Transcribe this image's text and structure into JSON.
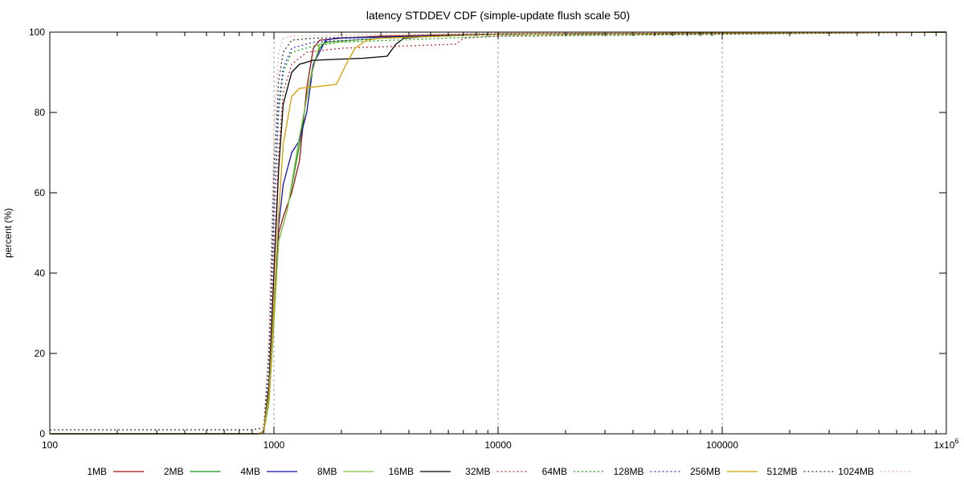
{
  "chart_data": {
    "type": "line",
    "title": "latency STDDEV CDF (simple-update flush scale 50)",
    "ylabel": "percent (%)",
    "xlabel": "",
    "x_scale": "log",
    "xlim": [
      100,
      1000000
    ],
    "ylim": [
      0,
      100
    ],
    "x_ticks": [
      {
        "value": 100,
        "label": "100"
      },
      {
        "value": 1000,
        "label": "1000"
      },
      {
        "value": 10000,
        "label": "10000"
      },
      {
        "value": 100000,
        "label": "100000"
      },
      {
        "value": 1000000,
        "label": "1x10",
        "sup": "6"
      }
    ],
    "y_ticks": [
      0,
      20,
      40,
      60,
      80,
      100
    ],
    "grid": "x-major-dashed",
    "legend_position": "bottom",
    "series": [
      {
        "name": "1MB",
        "color": "#a01010",
        "dash": "solid",
        "points": [
          [
            100,
            0
          ],
          [
            850,
            0
          ],
          [
            900,
            0.5
          ],
          [
            950,
            8
          ],
          [
            1000,
            28
          ],
          [
            1050,
            50
          ],
          [
            1100,
            54
          ],
          [
            1200,
            60
          ],
          [
            1300,
            68
          ],
          [
            1400,
            86
          ],
          [
            1500,
            96
          ],
          [
            1600,
            98
          ],
          [
            2000,
            98.5
          ],
          [
            3000,
            99
          ],
          [
            10000,
            99.5
          ],
          [
            1000000,
            100
          ]
        ]
      },
      {
        "name": "2MB",
        "color": "#109010",
        "dash": "solid",
        "points": [
          [
            100,
            0
          ],
          [
            850,
            0
          ],
          [
            900,
            0.5
          ],
          [
            950,
            8
          ],
          [
            1000,
            30
          ],
          [
            1050,
            48
          ],
          [
            1150,
            56
          ],
          [
            1300,
            72
          ],
          [
            1400,
            84
          ],
          [
            1500,
            92
          ],
          [
            1600,
            96
          ],
          [
            1700,
            97.5
          ],
          [
            3000,
            98.5
          ],
          [
            10000,
            99.5
          ],
          [
            1000000,
            100
          ]
        ]
      },
      {
        "name": "4MB",
        "color": "#1010b0",
        "dash": "solid",
        "points": [
          [
            100,
            0
          ],
          [
            850,
            0
          ],
          [
            900,
            0.5
          ],
          [
            950,
            10
          ],
          [
            1000,
            32
          ],
          [
            1050,
            52
          ],
          [
            1100,
            62
          ],
          [
            1200,
            70
          ],
          [
            1300,
            73
          ],
          [
            1400,
            80
          ],
          [
            1500,
            92
          ],
          [
            1700,
            98
          ],
          [
            1900,
            98.5
          ],
          [
            10000,
            99.5
          ],
          [
            1000000,
            100
          ]
        ]
      },
      {
        "name": "8MB",
        "color": "#80c040",
        "dash": "solid",
        "points": [
          [
            100,
            0
          ],
          [
            850,
            0
          ],
          [
            900,
            0.5
          ],
          [
            950,
            8
          ],
          [
            1000,
            28
          ],
          [
            1050,
            48
          ],
          [
            1150,
            56
          ],
          [
            1300,
            74
          ],
          [
            1450,
            88
          ],
          [
            1600,
            97
          ],
          [
            1800,
            97.5
          ],
          [
            3000,
            98.5
          ],
          [
            10000,
            99.5
          ],
          [
            1000000,
            100
          ]
        ]
      },
      {
        "name": "16MB",
        "color": "#000000",
        "dash": "solid",
        "points": [
          [
            100,
            0
          ],
          [
            850,
            0
          ],
          [
            900,
            0.5
          ],
          [
            950,
            12
          ],
          [
            1000,
            40
          ],
          [
            1050,
            66
          ],
          [
            1100,
            82
          ],
          [
            1200,
            90
          ],
          [
            1300,
            92
          ],
          [
            1500,
            93
          ],
          [
            2500,
            93.5
          ],
          [
            3200,
            94
          ],
          [
            3500,
            97
          ],
          [
            3800,
            98.5
          ],
          [
            5000,
            99
          ],
          [
            10000,
            99.5
          ],
          [
            1000000,
            100
          ]
        ]
      },
      {
        "name": "32MB",
        "color": "#c03030",
        "dash": "dotted",
        "points": [
          [
            100,
            0
          ],
          [
            850,
            0
          ],
          [
            900,
            0.5
          ],
          [
            950,
            12
          ],
          [
            1000,
            45
          ],
          [
            1050,
            70
          ],
          [
            1100,
            85
          ],
          [
            1200,
            92
          ],
          [
            1400,
            95
          ],
          [
            2000,
            96
          ],
          [
            6500,
            97
          ],
          [
            7000,
            98.5
          ],
          [
            10000,
            99
          ],
          [
            1000000,
            100
          ]
        ]
      },
      {
        "name": "64MB",
        "color": "#10a010",
        "dash": "dotted",
        "points": [
          [
            100,
            0
          ],
          [
            850,
            0
          ],
          [
            900,
            0.5
          ],
          [
            950,
            15
          ],
          [
            1000,
            55
          ],
          [
            1050,
            80
          ],
          [
            1100,
            90
          ],
          [
            1200,
            95
          ],
          [
            1500,
            96.5
          ],
          [
            2000,
            97.5
          ],
          [
            10000,
            99
          ],
          [
            1000000,
            100
          ]
        ]
      },
      {
        "name": "128MB",
        "color": "#3030c0",
        "dash": "dotted",
        "points": [
          [
            100,
            0
          ],
          [
            850,
            0
          ],
          [
            900,
            0.5
          ],
          [
            950,
            15
          ],
          [
            1000,
            55
          ],
          [
            1050,
            82
          ],
          [
            1100,
            91
          ],
          [
            1200,
            96
          ],
          [
            1500,
            97.5
          ],
          [
            3000,
            98.5
          ],
          [
            10000,
            99.5
          ],
          [
            1000000,
            100
          ]
        ]
      },
      {
        "name": "256MB",
        "color": "#d0a000",
        "dash": "solid",
        "points": [
          [
            100,
            0
          ],
          [
            850,
            0
          ],
          [
            900,
            0.5
          ],
          [
            950,
            10
          ],
          [
            1000,
            32
          ],
          [
            1050,
            55
          ],
          [
            1100,
            72
          ],
          [
            1200,
            84
          ],
          [
            1300,
            86
          ],
          [
            1600,
            86.5
          ],
          [
            1900,
            87
          ],
          [
            2100,
            92
          ],
          [
            2300,
            96
          ],
          [
            2600,
            98
          ],
          [
            3000,
            98.5
          ],
          [
            10000,
            99.5
          ],
          [
            1000000,
            100
          ]
        ]
      },
      {
        "name": "512MB",
        "color": "#303030",
        "dash": "dotted",
        "points": [
          [
            100,
            1
          ],
          [
            800,
            1
          ],
          [
            900,
            1.5
          ],
          [
            950,
            20
          ],
          [
            1000,
            65
          ],
          [
            1050,
            88
          ],
          [
            1100,
            95
          ],
          [
            1200,
            98
          ],
          [
            1500,
            98.5
          ],
          [
            10000,
            99.5
          ],
          [
            1000000,
            100
          ]
        ]
      },
      {
        "name": "1024MB",
        "color": "#f0b0a0",
        "dash": "dotted",
        "points": [
          [
            100,
            0
          ],
          [
            850,
            0
          ],
          [
            900,
            1
          ],
          [
            950,
            25
          ],
          [
            1000,
            75
          ],
          [
            1050,
            95
          ],
          [
            1100,
            98.5
          ],
          [
            1200,
            99
          ],
          [
            10000,
            99.8
          ],
          [
            1000000,
            100
          ]
        ]
      }
    ]
  }
}
